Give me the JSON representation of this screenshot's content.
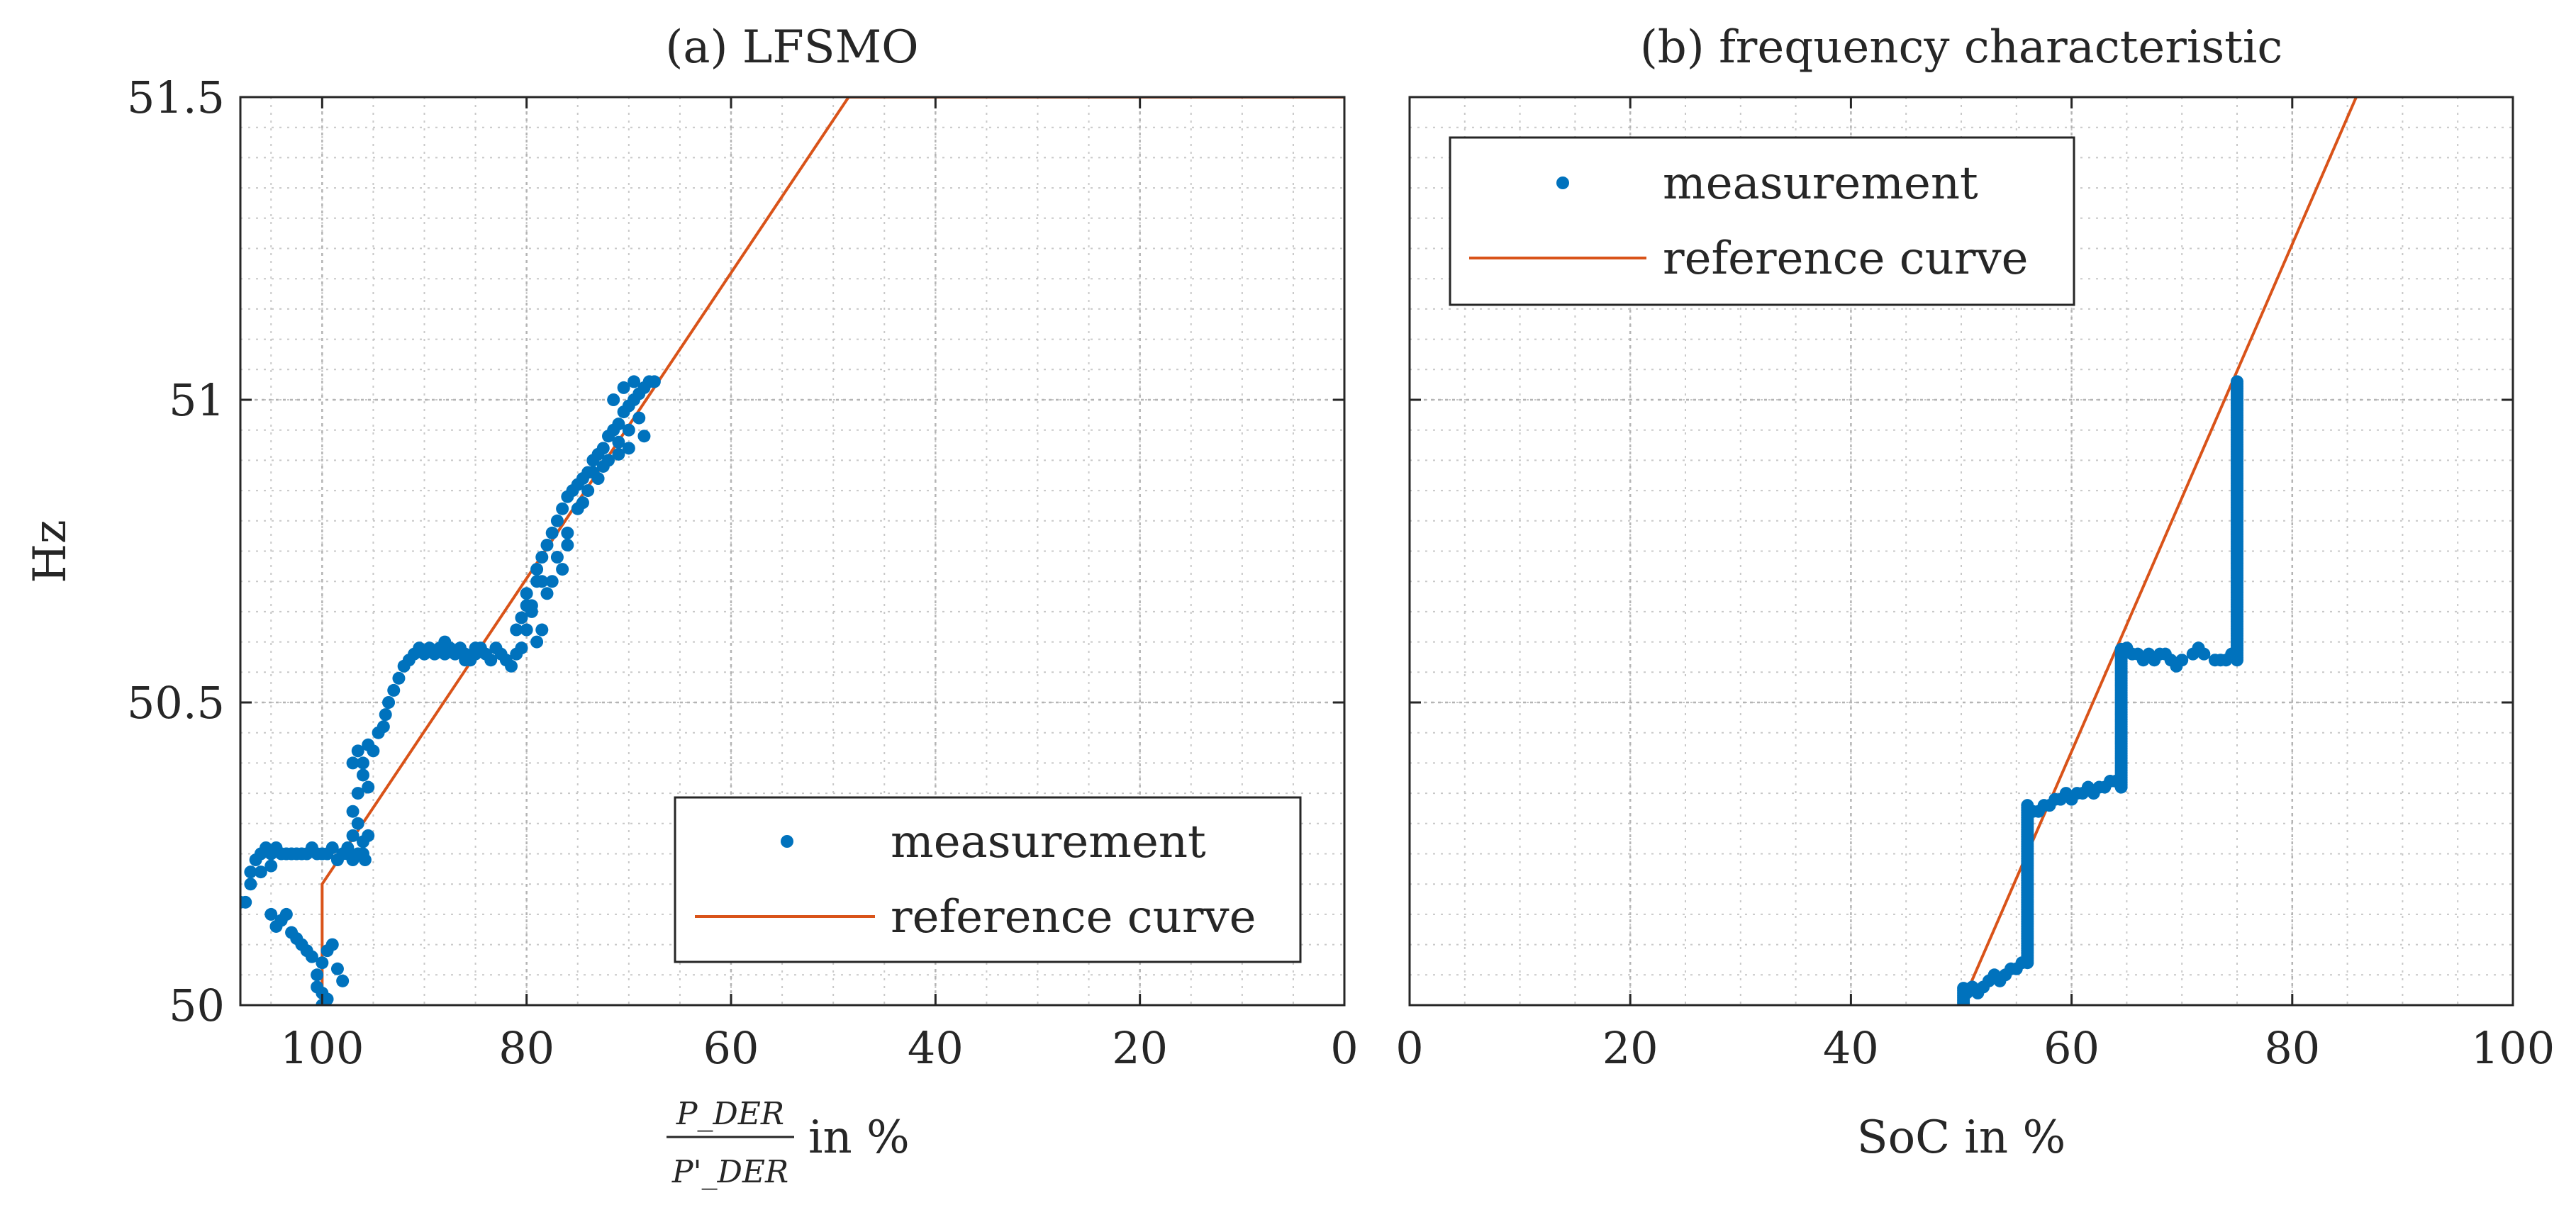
{
  "chart_data": [
    {
      "type": "scatter",
      "title": "(a) LFSMO",
      "xlabel_fraction": {
        "numerator": "P_DER",
        "denominator": "P'_DER"
      },
      "xlabel": "in %",
      "ylabel": "Hz",
      "xlim": [
        108,
        0
      ],
      "x_reversed": true,
      "ylim": [
        50,
        51.5
      ],
      "x_ticks": [
        "100",
        "80",
        "60",
        "40",
        "20",
        "0"
      ],
      "y_ticks": [
        "50",
        "50.5",
        "51",
        "51.5"
      ],
      "legend": {
        "placement": "bottom-right",
        "entries": [
          "measurement",
          "reference curve"
        ]
      },
      "grid": true,
      "colors": {
        "measurement": "#0072BD",
        "reference": "#D95319"
      },
      "series": [
        {
          "name": "measurement",
          "points": [
            [
              108,
              50.17
            ],
            [
              107.5,
              50.17
            ],
            [
              107,
              50.2
            ],
            [
              107,
              50.22
            ],
            [
              106.5,
              50.24
            ],
            [
              106,
              50.25
            ],
            [
              105.5,
              50.26
            ],
            [
              105,
              50.25
            ],
            [
              106,
              50.22
            ],
            [
              105,
              50.23
            ],
            [
              104.5,
              50.26
            ],
            [
              104,
              50.25
            ],
            [
              103.5,
              50.25
            ],
            [
              103,
              50.25
            ],
            [
              102.5,
              50.25
            ],
            [
              102,
              50.25
            ],
            [
              101.5,
              50.25
            ],
            [
              101,
              50.26
            ],
            [
              100.5,
              50.25
            ],
            [
              100,
              50.25
            ],
            [
              99.5,
              50.25
            ],
            [
              99,
              50.26
            ],
            [
              98.5,
              50.24
            ],
            [
              98,
              50.25
            ],
            [
              97.5,
              50.26
            ],
            [
              97,
              50.24
            ],
            [
              96.5,
              50.25
            ],
            [
              96,
              50.25
            ],
            [
              95.8,
              50.24
            ],
            [
              104,
              50.14
            ],
            [
              103.5,
              50.15
            ],
            [
              103,
              50.12
            ],
            [
              102.5,
              50.11
            ],
            [
              102,
              50.1
            ],
            [
              101.5,
              50.09
            ],
            [
              105,
              50.15
            ],
            [
              104.5,
              50.13
            ],
            [
              100,
              50.07
            ],
            [
              100.5,
              50.05
            ],
            [
              101,
              50.08
            ],
            [
              100.5,
              50.03
            ],
            [
              100,
              50.02
            ],
            [
              99.5,
              50.01
            ],
            [
              99.5,
              50.09
            ],
            [
              99,
              50.1
            ],
            [
              98.5,
              50.06
            ],
            [
              98,
              50.04
            ],
            [
              100,
              50.0
            ],
            [
              97.5,
              50.25
            ],
            [
              97,
              50.28
            ],
            [
              96.5,
              50.3
            ],
            [
              96,
              50.27
            ],
            [
              95.5,
              50.28
            ],
            [
              97,
              50.32
            ],
            [
              96.5,
              50.35
            ],
            [
              96,
              50.38
            ],
            [
              95.5,
              50.36
            ],
            [
              97,
              50.4
            ],
            [
              96.5,
              50.42
            ],
            [
              96,
              50.4
            ],
            [
              95.5,
              50.43
            ],
            [
              95,
              50.42
            ],
            [
              94.5,
              50.45
            ],
            [
              94,
              50.46
            ],
            [
              93.8,
              50.48
            ],
            [
              93.5,
              50.5
            ],
            [
              93,
              50.52
            ],
            [
              92.5,
              50.54
            ],
            [
              92,
              50.56
            ],
            [
              91.5,
              50.57
            ],
            [
              91,
              50.58
            ],
            [
              90.5,
              50.59
            ],
            [
              90,
              50.58
            ],
            [
              89.5,
              50.59
            ],
            [
              89,
              50.58
            ],
            [
              88.5,
              50.59
            ],
            [
              88,
              50.58
            ],
            [
              87.5,
              50.59
            ],
            [
              87,
              50.58
            ],
            [
              86.5,
              50.59
            ],
            [
              86,
              50.58
            ],
            [
              85.5,
              50.57
            ],
            [
              85,
              50.58
            ],
            [
              84.5,
              50.59
            ],
            [
              84,
              50.58
            ],
            [
              83.5,
              50.57
            ],
            [
              83,
              50.59
            ],
            [
              82.5,
              50.58
            ],
            [
              82,
              50.57
            ],
            [
              81.5,
              50.56
            ],
            [
              81,
              50.58
            ],
            [
              80.5,
              50.59
            ],
            [
              86,
              50.57
            ],
            [
              88,
              50.6
            ],
            [
              85,
              50.59
            ],
            [
              80,
              50.62
            ],
            [
              80.5,
              50.64
            ],
            [
              79.5,
              50.66
            ],
            [
              80,
              50.68
            ],
            [
              79,
              50.7
            ],
            [
              79.5,
              50.65
            ],
            [
              78.5,
              50.7
            ],
            [
              79,
              50.72
            ],
            [
              78.5,
              50.74
            ],
            [
              78,
              50.76
            ],
            [
              77.5,
              50.78
            ],
            [
              77,
              50.8
            ],
            [
              76.5,
              50.82
            ],
            [
              76,
              50.84
            ],
            [
              75.5,
              50.85
            ],
            [
              75,
              50.86
            ],
            [
              74.5,
              50.87
            ],
            [
              74,
              50.88
            ],
            [
              73.5,
              50.9
            ],
            [
              73,
              50.91
            ],
            [
              72.5,
              50.92
            ],
            [
              72,
              50.94
            ],
            [
              71.5,
              50.95
            ],
            [
              71,
              50.96
            ],
            [
              70.5,
              50.98
            ],
            [
              70,
              50.99
            ],
            [
              69.5,
              51.0
            ],
            [
              69,
              51.01
            ],
            [
              68.5,
              51.02
            ],
            [
              68,
              51.03
            ],
            [
              67.5,
              51.03
            ],
            [
              77,
              50.74
            ],
            [
              76,
              50.78
            ],
            [
              75,
              50.82
            ],
            [
              74,
              50.85
            ],
            [
              73,
              50.87
            ],
            [
              72,
              50.9
            ],
            [
              71,
              50.93
            ],
            [
              70,
              50.95
            ],
            [
              69,
              50.97
            ],
            [
              76.5,
              50.72
            ],
            [
              78,
              50.68
            ],
            [
              77.5,
              50.7
            ],
            [
              71.5,
              51.0
            ],
            [
              70.5,
              51.02
            ],
            [
              69.5,
              51.03
            ],
            [
              78.5,
              50.62
            ],
            [
              79,
              50.6
            ],
            [
              76,
              50.76
            ],
            [
              74.5,
              50.83
            ],
            [
              73.5,
              50.88
            ],
            [
              72.5,
              50.89
            ],
            [
              71,
              50.91
            ],
            [
              70,
              50.92
            ],
            [
              68.5,
              50.94
            ],
            [
              81,
              50.62
            ],
            [
              80,
              50.66
            ]
          ]
        },
        {
          "name": "reference curve",
          "points": [
            [
              100,
              50.0
            ],
            [
              100,
              50.2
            ],
            [
              48.5,
              51.5
            ],
            [
              0,
              51.5
            ]
          ]
        }
      ]
    },
    {
      "type": "scatter",
      "title": "(b) frequency characteristic",
      "xlabel": "SoC in %",
      "ylabel": "",
      "xlim": [
        0,
        100
      ],
      "ylim": [
        50,
        51.5
      ],
      "x_ticks": [
        "0",
        "20",
        "40",
        "60",
        "80",
        "100"
      ],
      "legend": {
        "placement": "top-left",
        "entries": [
          "measurement",
          "reference curve"
        ]
      },
      "grid": true,
      "series": [
        {
          "name": "measurement",
          "vertical_segments": [
            {
              "x": 50.2,
              "y_from": 50.0,
              "y_to": 50.03
            },
            {
              "x": 56.0,
              "y_from": 50.07,
              "y_to": 50.33
            },
            {
              "x": 64.5,
              "y_from": 50.36,
              "y_to": 50.59
            },
            {
              "x": 75.0,
              "y_from": 50.57,
              "y_to": 51.03
            }
          ],
          "points": [
            [
              50.5,
              50.02
            ],
            [
              51,
              50.03
            ],
            [
              51.5,
              50.02
            ],
            [
              52,
              50.03
            ],
            [
              52.5,
              50.04
            ],
            [
              53,
              50.05
            ],
            [
              53.5,
              50.04
            ],
            [
              54,
              50.05
            ],
            [
              54.5,
              50.06
            ],
            [
              55,
              50.06
            ],
            [
              55.5,
              50.07
            ],
            [
              56.5,
              50.32
            ],
            [
              57,
              50.32
            ],
            [
              57.5,
              50.33
            ],
            [
              58,
              50.33
            ],
            [
              58.5,
              50.34
            ],
            [
              59,
              50.34
            ],
            [
              59.5,
              50.35
            ],
            [
              60,
              50.34
            ],
            [
              60.5,
              50.35
            ],
            [
              61,
              50.35
            ],
            [
              61.5,
              50.36
            ],
            [
              62,
              50.35
            ],
            [
              62.5,
              50.36
            ],
            [
              63,
              50.36
            ],
            [
              63.5,
              50.37
            ],
            [
              64,
              50.37
            ],
            [
              65,
              50.59
            ],
            [
              65.5,
              50.58
            ],
            [
              66,
              50.58
            ],
            [
              66.5,
              50.57
            ],
            [
              67,
              50.58
            ],
            [
              67.5,
              50.57
            ],
            [
              68,
              50.58
            ],
            [
              68.5,
              50.58
            ],
            [
              69,
              50.57
            ],
            [
              69.5,
              50.56
            ],
            [
              70,
              50.57
            ],
            [
              71,
              50.58
            ],
            [
              71.5,
              50.59
            ],
            [
              72,
              50.58
            ],
            [
              73,
              50.57
            ],
            [
              73.5,
              50.57
            ],
            [
              74,
              50.57
            ],
            [
              74.5,
              50.58
            ]
          ]
        },
        {
          "name": "reference curve",
          "points": [
            [
              50,
              50.0
            ],
            [
              85.8,
              51.5
            ]
          ]
        }
      ]
    }
  ]
}
